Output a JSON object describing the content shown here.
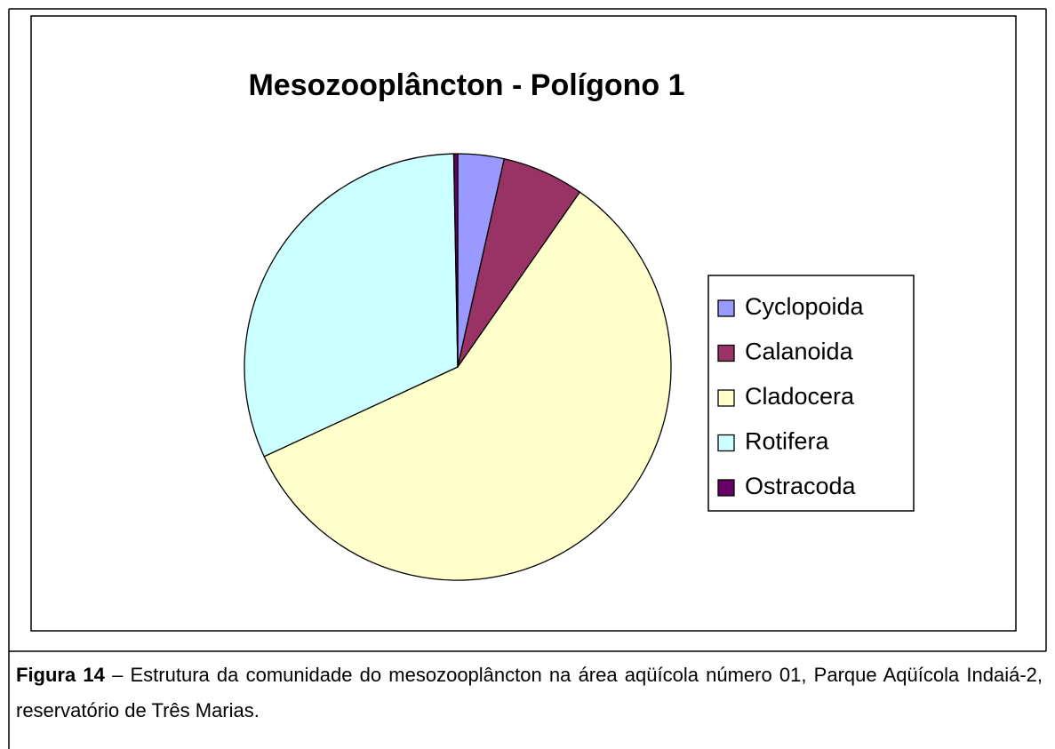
{
  "chart_data": {
    "type": "pie",
    "title": "Mesozooplâncton - Polígono 1",
    "categories": [
      "Cyclopoida",
      "Calanoida",
      "Cladocera",
      "Rotifera",
      "Ostracoda"
    ],
    "values": [
      3.5,
      6.2,
      58.4,
      31.6,
      0.3
    ],
    "colors": [
      "#9999ff",
      "#993366",
      "#ffffcc",
      "#ccffff",
      "#660066"
    ],
    "legend": "right"
  },
  "caption": {
    "label": "Figura 14",
    "text": "– Estrutura da comunidade do mesozooplâncton na área aqüícola número 01, Parque Aqüícola Indaiá-2, reservatório de Três Marias."
  }
}
